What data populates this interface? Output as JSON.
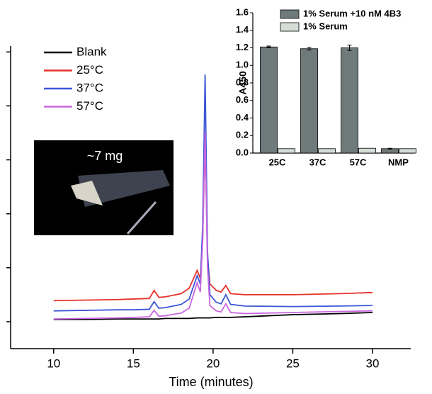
{
  "chart_data": [
    {
      "type": "line",
      "x_label": "Time (minutes)",
      "x": [
        10,
        12,
        14,
        15,
        16,
        16.3,
        16.6,
        17,
        18,
        18.5,
        19,
        19.2,
        19.35,
        19.5,
        19.65,
        19.8,
        20.2,
        20.5,
        20.8,
        21.1,
        22,
        25,
        28,
        30
      ],
      "series": [
        {
          "name": "Blank",
          "color": "#000000",
          "values": [
            1.04,
            1.04,
            1.05,
            1.05,
            1.05,
            1.05,
            1.05,
            1.06,
            1.06,
            1.06,
            1.07,
            1.07,
            1.07,
            1.07,
            1.07,
            1.07,
            1.08,
            1.08,
            1.08,
            1.08,
            1.09,
            1.13,
            1.15,
            1.17
          ]
        },
        {
          "name": "25°C",
          "color": "#e8312b",
          "values": [
            1.39,
            1.4,
            1.41,
            1.42,
            1.43,
            1.58,
            1.45,
            1.46,
            1.52,
            1.62,
            1.95,
            1.8,
            2.6,
            4.4,
            2.2,
            1.7,
            1.58,
            1.55,
            1.67,
            1.52,
            1.5,
            1.5,
            1.52,
            1.54
          ]
        },
        {
          "name": "37°C",
          "color": "#3b56d6",
          "values": [
            1.2,
            1.21,
            1.22,
            1.22,
            1.23,
            1.37,
            1.25,
            1.26,
            1.32,
            1.42,
            1.85,
            1.7,
            2.8,
            5.58,
            2.3,
            1.5,
            1.36,
            1.33,
            1.5,
            1.32,
            1.29,
            1.28,
            1.29,
            1.3
          ]
        },
        {
          "name": "57°C",
          "color": "#c966e0",
          "values": [
            1.05,
            1.06,
            1.07,
            1.08,
            1.09,
            1.21,
            1.1,
            1.11,
            1.16,
            1.25,
            1.72,
            1.55,
            2.5,
            4.53,
            2.0,
            1.3,
            1.2,
            1.18,
            1.33,
            1.17,
            1.15,
            1.17,
            1.19,
            1.2
          ]
        }
      ],
      "xlim": [
        7.3,
        32.4
      ],
      "xticks": [
        10,
        15,
        20,
        25,
        30
      ],
      "ylim": [
        0.5,
        6.7
      ],
      "yticks": [
        1,
        2,
        3,
        4,
        5,
        6
      ]
    },
    {
      "type": "bar",
      "y_label": "A450",
      "categories": [
        "25C",
        "37C",
        "57C",
        "NMP"
      ],
      "series": [
        {
          "name": "1% Serum +10 nM 4B3",
          "color": "#6f7a7a",
          "values": [
            1.21,
            1.19,
            1.2,
            0.05
          ],
          "errors": [
            0.01,
            0.015,
            0.03,
            0.005
          ]
        },
        {
          "name": "1% Serum",
          "color": "#d4dcd6",
          "values": [
            0.05,
            0.05,
            0.055,
            0.05
          ]
        }
      ],
      "ylim": [
        0,
        1.6
      ],
      "yticks": [
        {
          "value": 0,
          "label": "0.0"
        },
        {
          "value": 0.2,
          "label": "0.2"
        },
        {
          "value": 0.4,
          "label": "0.4"
        },
        {
          "value": 0.6,
          "label": "0.6"
        },
        {
          "value": 0.8,
          "label": "0.8"
        },
        {
          "value": 1.0,
          "label": "1.0"
        },
        {
          "value": 1.2,
          "label": "1.2"
        },
        {
          "value": 1.4,
          "label": "1.4"
        },
        {
          "value": 1.6,
          "label": "1.6"
        }
      ]
    }
  ],
  "photo_label": "~7 mg"
}
